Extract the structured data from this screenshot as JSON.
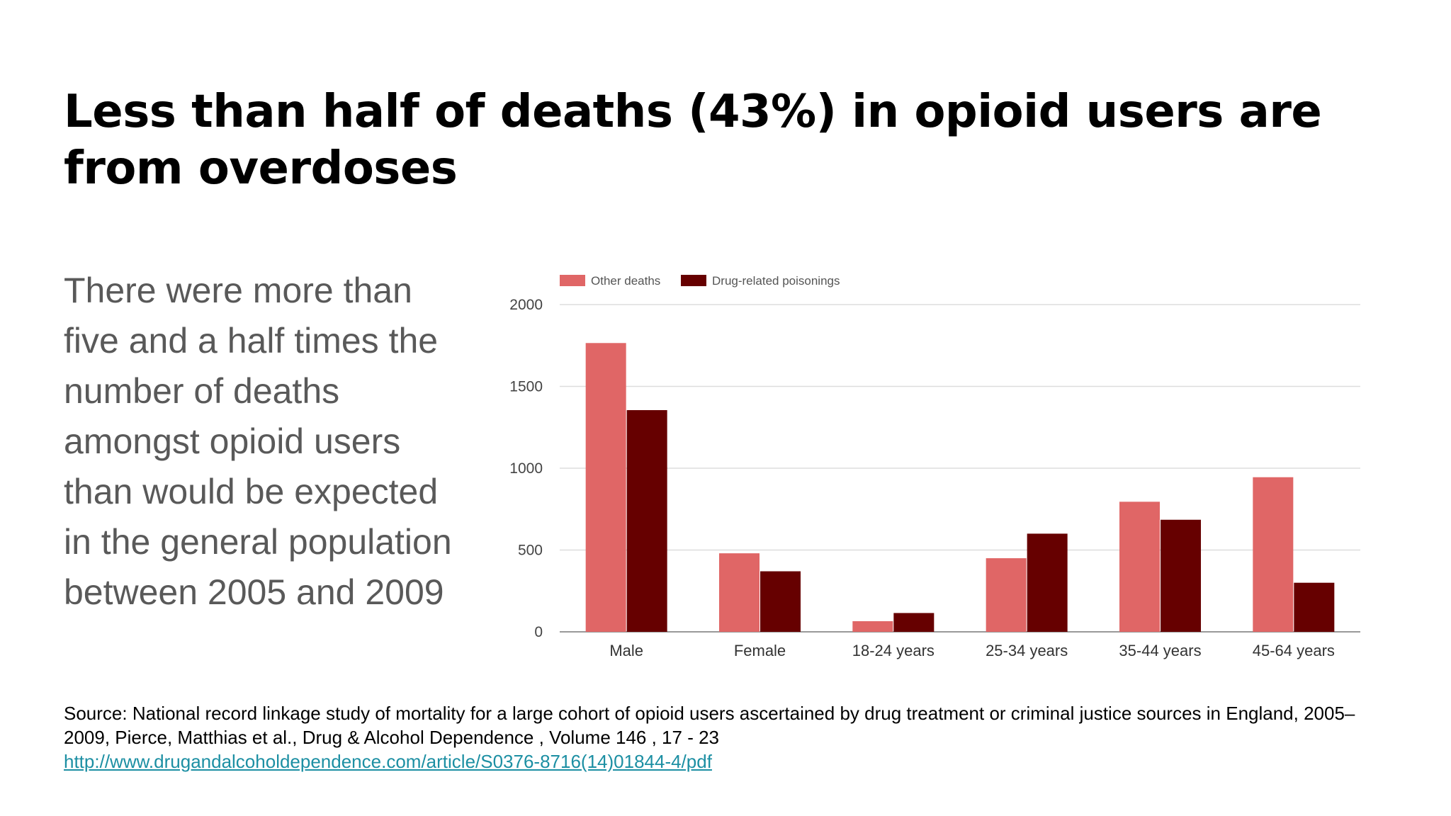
{
  "slide": {
    "title": "Less than half of deaths (43%) in opioid users are from overdoses",
    "body": "There were more than five and a half times the number of deaths amongst opioid users than would be expected in the general population between 2005 and 2009",
    "source_line1": "Source: National record linkage study of mortality for a large cohort of opioid users ascertained by drug treatment or criminal justice sources in England, 2005–2009, Pierce, Matthias et al., Drug & Alcohol Dependence , Volume 146 , 17 - 23",
    "source_link": "http://www.drugandalcoholdependence.com/article/S0376-8716(14)01844-4/pdf"
  },
  "chart_data": {
    "type": "bar",
    "categories": [
      "Male",
      "Female",
      "18-24 years",
      "25-34 years",
      "35-44 years",
      "45-64 years"
    ],
    "series": [
      {
        "name": "Other deaths",
        "color": "#e06666",
        "values": [
          1765,
          480,
          65,
          450,
          795,
          945
        ]
      },
      {
        "name": "Drug-related poisonings",
        "color": "#660000",
        "values": [
          1355,
          370,
          115,
          600,
          685,
          300
        ]
      }
    ],
    "ylim": [
      0,
      2000
    ],
    "yticks": [
      "0",
      "500",
      "1000",
      "1500",
      "2000"
    ],
    "ytick_values": [
      0,
      500,
      1000,
      1500,
      2000
    ],
    "grid": true,
    "legend_position": "top-left",
    "xlabel": "",
    "ylabel": ""
  }
}
